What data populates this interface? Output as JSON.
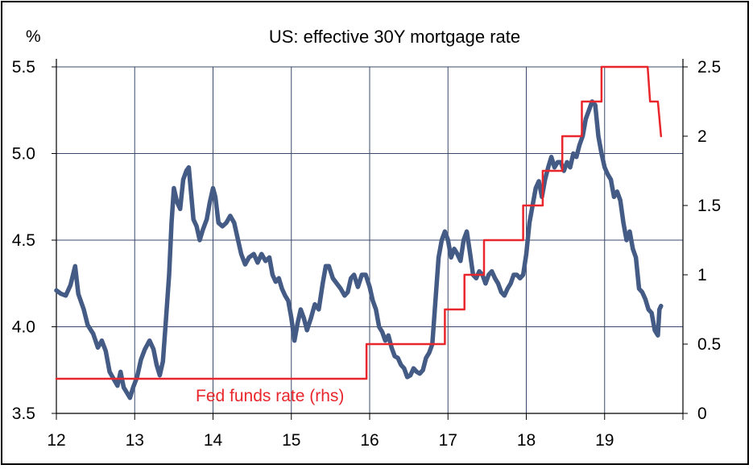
{
  "chart_data": {
    "type": "line",
    "title": "US: effective 30Y mortgage rate",
    "ylabel": "%",
    "xlabel": "",
    "x_ticks": [
      "12",
      "13",
      "14",
      "15",
      "16",
      "17",
      "18",
      "19"
    ],
    "xlim": [
      12,
      20
    ],
    "y_left": {
      "lim": [
        3.5,
        5.5
      ],
      "ticks": [
        "3.5",
        "4.0",
        "4.5",
        "5.0",
        "5.5"
      ]
    },
    "y_right": {
      "lim": [
        0,
        2.5
      ],
      "ticks": [
        "0",
        "0.5",
        "1",
        "1.5",
        "2",
        "2.5"
      ]
    },
    "grid": true,
    "annotations": [
      {
        "text": "Fed funds rate (rhs)",
        "color": "#e8262b"
      }
    ],
    "series": [
      {
        "axis": "left",
        "color": "#445b85",
        "points": [
          [
            12.0,
            4.21
          ],
          [
            12.06,
            4.19
          ],
          [
            12.12,
            4.18
          ],
          [
            12.18,
            4.24
          ],
          [
            12.24,
            4.35
          ],
          [
            12.28,
            4.19
          ],
          [
            12.35,
            4.1
          ],
          [
            12.4,
            4.01
          ],
          [
            12.47,
            3.96
          ],
          [
            12.53,
            3.88
          ],
          [
            12.58,
            3.92
          ],
          [
            12.63,
            3.86
          ],
          [
            12.68,
            3.74
          ],
          [
            12.73,
            3.7
          ],
          [
            12.78,
            3.66
          ],
          [
            12.82,
            3.74
          ],
          [
            12.86,
            3.65
          ],
          [
            12.9,
            3.62
          ],
          [
            12.94,
            3.59
          ],
          [
            12.98,
            3.65
          ],
          [
            13.03,
            3.71
          ],
          [
            13.08,
            3.81
          ],
          [
            13.13,
            3.87
          ],
          [
            13.19,
            3.92
          ],
          [
            13.24,
            3.87
          ],
          [
            13.28,
            3.78
          ],
          [
            13.32,
            3.72
          ],
          [
            13.36,
            3.8
          ],
          [
            13.4,
            4.05
          ],
          [
            13.44,
            4.3
          ],
          [
            13.47,
            4.6
          ],
          [
            13.5,
            4.8
          ],
          [
            13.54,
            4.72
          ],
          [
            13.58,
            4.68
          ],
          [
            13.62,
            4.85
          ],
          [
            13.66,
            4.9
          ],
          [
            13.69,
            4.92
          ],
          [
            13.72,
            4.77
          ],
          [
            13.75,
            4.62
          ],
          [
            13.79,
            4.58
          ],
          [
            13.83,
            4.5
          ],
          [
            13.87,
            4.56
          ],
          [
            13.92,
            4.62
          ],
          [
            13.96,
            4.72
          ],
          [
            14.0,
            4.8
          ],
          [
            14.03,
            4.75
          ],
          [
            14.07,
            4.6
          ],
          [
            14.12,
            4.58
          ],
          [
            14.17,
            4.6
          ],
          [
            14.22,
            4.64
          ],
          [
            14.27,
            4.6
          ],
          [
            14.32,
            4.5
          ],
          [
            14.36,
            4.42
          ],
          [
            14.41,
            4.36
          ],
          [
            14.46,
            4.4
          ],
          [
            14.52,
            4.42
          ],
          [
            14.57,
            4.37
          ],
          [
            14.62,
            4.42
          ],
          [
            14.67,
            4.38
          ],
          [
            14.72,
            4.4
          ],
          [
            14.76,
            4.3
          ],
          [
            14.8,
            4.26
          ],
          [
            14.84,
            4.28
          ],
          [
            14.88,
            4.22
          ],
          [
            14.92,
            4.18
          ],
          [
            14.96,
            4.15
          ],
          [
            15.0,
            4.05
          ],
          [
            15.04,
            3.92
          ],
          [
            15.08,
            4.02
          ],
          [
            15.12,
            4.1
          ],
          [
            15.16,
            4.05
          ],
          [
            15.2,
            3.98
          ],
          [
            15.25,
            4.05
          ],
          [
            15.3,
            4.13
          ],
          [
            15.35,
            4.1
          ],
          [
            15.4,
            4.25
          ],
          [
            15.44,
            4.35
          ],
          [
            15.48,
            4.35
          ],
          [
            15.53,
            4.28
          ],
          [
            15.58,
            4.25
          ],
          [
            15.63,
            4.22
          ],
          [
            15.68,
            4.18
          ],
          [
            15.72,
            4.2
          ],
          [
            15.76,
            4.28
          ],
          [
            15.8,
            4.3
          ],
          [
            15.85,
            4.23
          ],
          [
            15.9,
            4.3
          ],
          [
            15.95,
            4.3
          ],
          [
            16.0,
            4.23
          ],
          [
            16.04,
            4.15
          ],
          [
            16.08,
            4.1
          ],
          [
            16.12,
            4.0
          ],
          [
            16.16,
            3.97
          ],
          [
            16.2,
            3.92
          ],
          [
            16.24,
            3.95
          ],
          [
            16.28,
            3.88
          ],
          [
            16.32,
            3.83
          ],
          [
            16.36,
            3.82
          ],
          [
            16.4,
            3.78
          ],
          [
            16.44,
            3.76
          ],
          [
            16.48,
            3.71
          ],
          [
            16.52,
            3.72
          ],
          [
            16.56,
            3.76
          ],
          [
            16.6,
            3.74
          ],
          [
            16.64,
            3.73
          ],
          [
            16.68,
            3.75
          ],
          [
            16.72,
            3.82
          ],
          [
            16.76,
            3.85
          ],
          [
            16.8,
            3.9
          ],
          [
            16.84,
            4.15
          ],
          [
            16.88,
            4.4
          ],
          [
            16.92,
            4.5
          ],
          [
            16.96,
            4.55
          ],
          [
            17.0,
            4.5
          ],
          [
            17.04,
            4.4
          ],
          [
            17.08,
            4.45
          ],
          [
            17.12,
            4.42
          ],
          [
            17.16,
            4.38
          ],
          [
            17.2,
            4.5
          ],
          [
            17.24,
            4.55
          ],
          [
            17.28,
            4.43
          ],
          [
            17.32,
            4.3
          ],
          [
            17.36,
            4.28
          ],
          [
            17.4,
            4.32
          ],
          [
            17.44,
            4.3
          ],
          [
            17.48,
            4.25
          ],
          [
            17.52,
            4.3
          ],
          [
            17.56,
            4.32
          ],
          [
            17.6,
            4.28
          ],
          [
            17.64,
            4.25
          ],
          [
            17.68,
            4.2
          ],
          [
            17.72,
            4.18
          ],
          [
            17.76,
            4.22
          ],
          [
            17.8,
            4.25
          ],
          [
            17.84,
            4.3
          ],
          [
            17.88,
            4.3
          ],
          [
            17.92,
            4.28
          ],
          [
            17.96,
            4.3
          ],
          [
            18.0,
            4.42
          ],
          [
            18.04,
            4.6
          ],
          [
            18.08,
            4.7
          ],
          [
            18.12,
            4.8
          ],
          [
            18.16,
            4.84
          ],
          [
            18.2,
            4.75
          ],
          [
            18.24,
            4.85
          ],
          [
            18.28,
            4.92
          ],
          [
            18.32,
            4.98
          ],
          [
            18.36,
            4.92
          ],
          [
            18.4,
            4.95
          ],
          [
            18.44,
            4.95
          ],
          [
            18.48,
            4.9
          ],
          [
            18.52,
            4.95
          ],
          [
            18.56,
            4.92
          ],
          [
            18.6,
            5.0
          ],
          [
            18.64,
            4.98
          ],
          [
            18.68,
            5.05
          ],
          [
            18.72,
            5.1
          ],
          [
            18.76,
            5.2
          ],
          [
            18.8,
            5.25
          ],
          [
            18.84,
            5.3
          ],
          [
            18.88,
            5.28
          ],
          [
            18.92,
            5.1
          ],
          [
            18.96,
            5.0
          ],
          [
            19.0,
            4.92
          ],
          [
            19.04,
            4.88
          ],
          [
            19.08,
            4.85
          ],
          [
            19.12,
            4.75
          ],
          [
            19.16,
            4.78
          ],
          [
            19.2,
            4.73
          ],
          [
            19.24,
            4.6
          ],
          [
            19.28,
            4.5
          ],
          [
            19.32,
            4.55
          ],
          [
            19.36,
            4.45
          ],
          [
            19.4,
            4.4
          ],
          [
            19.44,
            4.22
          ],
          [
            19.48,
            4.2
          ],
          [
            19.52,
            4.16
          ],
          [
            19.56,
            4.1
          ],
          [
            19.6,
            4.08
          ],
          [
            19.64,
            3.98
          ],
          [
            19.68,
            3.95
          ],
          [
            19.7,
            4.1
          ],
          [
            19.72,
            4.12
          ]
        ]
      },
      {
        "name": "Fed funds rate (rhs)",
        "axis": "right",
        "color": "#e8262b",
        "step": true,
        "points": [
          [
            12.0,
            0.25
          ],
          [
            15.96,
            0.25
          ],
          [
            15.96,
            0.5
          ],
          [
            16.96,
            0.5
          ],
          [
            16.96,
            0.75
          ],
          [
            17.21,
            0.75
          ],
          [
            17.21,
            1.0
          ],
          [
            17.46,
            1.0
          ],
          [
            17.46,
            1.25
          ],
          [
            17.96,
            1.25
          ],
          [
            17.96,
            1.5
          ],
          [
            18.21,
            1.5
          ],
          [
            18.21,
            1.75
          ],
          [
            18.46,
            1.75
          ],
          [
            18.46,
            2.0
          ],
          [
            18.71,
            2.0
          ],
          [
            18.71,
            2.25
          ],
          [
            18.96,
            2.25
          ],
          [
            18.96,
            2.5
          ],
          [
            19.55,
            2.5
          ],
          [
            19.58,
            2.25
          ],
          [
            19.68,
            2.25
          ],
          [
            19.72,
            2.0
          ]
        ]
      }
    ]
  }
}
